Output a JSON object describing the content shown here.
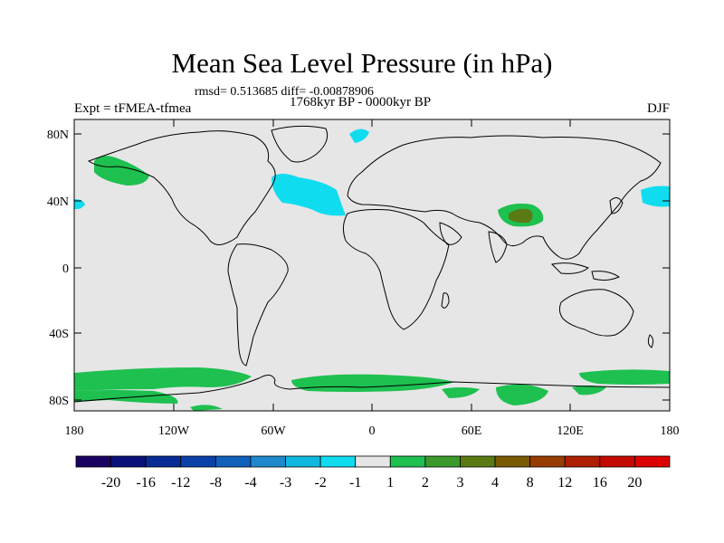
{
  "title": "Mean Sea Level Pressure (in hPa)",
  "stats": "rmsd= 0.513685 diff= -0.00878906",
  "experiment": "Expt = tFMEA-tfmea",
  "period": "1768kyr BP - 0000kyr BP",
  "season": "DJF",
  "lat_ticks": [
    "80N",
    "40N",
    "0",
    "40S",
    "80S"
  ],
  "lon_ticks": [
    "180",
    "120W",
    "60W",
    "0",
    "60E",
    "120E",
    "180"
  ],
  "colorbar": {
    "labels": [
      "-20",
      "-16",
      "-12",
      "-8",
      "-4",
      "-3",
      "-2",
      "-1",
      "1",
      "2",
      "3",
      "4",
      "8",
      "12",
      "16",
      "20"
    ],
    "colors": [
      "#1a0060",
      "#0a0f7a",
      "#082a96",
      "#0a40a8",
      "#1060bc",
      "#1e88cc",
      "#10b8e0",
      "#10dcf0",
      "#e6e6e6",
      "#1ec050",
      "#3c9a2c",
      "#5a7a14",
      "#7a5a00",
      "#963c00",
      "#ae1e00",
      "#c40a00",
      "#dc0000"
    ]
  },
  "colors": {
    "background": "#e6e6e6",
    "positive_small": "#1ec050",
    "positive_medium": "#5a7a14",
    "negative_small": "#10dcf0"
  }
}
